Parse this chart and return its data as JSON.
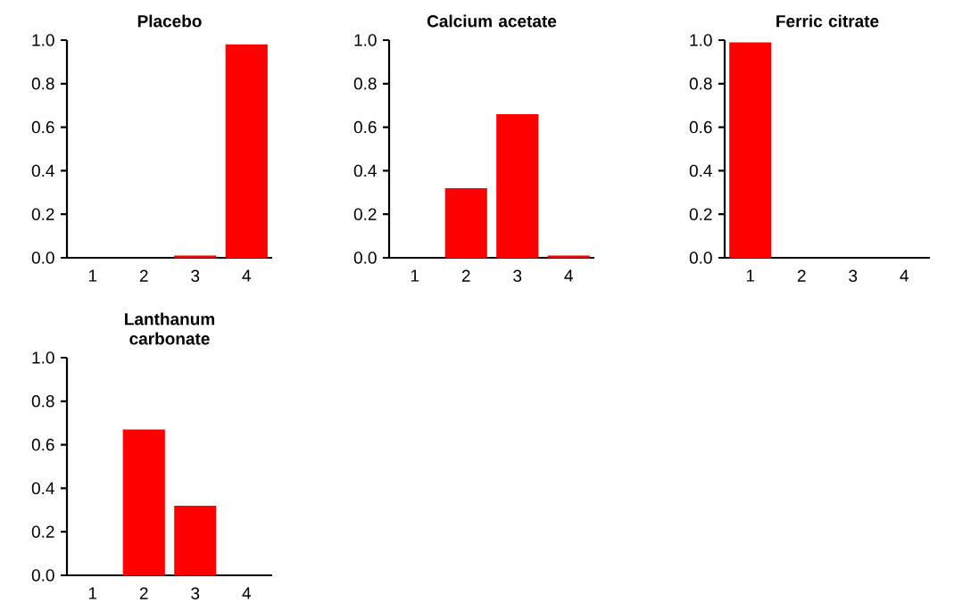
{
  "chart_data": [
    {
      "type": "bar",
      "title": "Placebo",
      "categories": [
        "1",
        "2",
        "3",
        "4"
      ],
      "values": [
        0,
        0,
        0.01,
        0.98
      ],
      "color": "#ff0000",
      "ylim": [
        0,
        1
      ],
      "yticks": [
        {
          "value": 0,
          "label": "0.0"
        },
        {
          "value": 0.2,
          "label": "0.2"
        },
        {
          "value": 0.4,
          "label": "0.4"
        },
        {
          "value": 0.6,
          "label": "0.6"
        },
        {
          "value": 0.8,
          "label": "0.8"
        },
        {
          "value": 1,
          "label": "1.0"
        }
      ]
    },
    {
      "type": "bar",
      "title": "Calcium acetate",
      "categories": [
        "1",
        "2",
        "3",
        "4"
      ],
      "values": [
        0,
        0.32,
        0.66,
        0.01
      ],
      "color": "#ff0000",
      "ylim": [
        0,
        1
      ],
      "yticks": [
        {
          "value": 0,
          "label": "0.0"
        },
        {
          "value": 0.2,
          "label": "0.2"
        },
        {
          "value": 0.4,
          "label": "0.4"
        },
        {
          "value": 0.6,
          "label": "0.6"
        },
        {
          "value": 0.8,
          "label": "0.8"
        },
        {
          "value": 1,
          "label": "1.0"
        }
      ]
    },
    {
      "type": "bar",
      "title": "Ferric citrate",
      "categories": [
        "1",
        "2",
        "3",
        "4"
      ],
      "values": [
        0.99,
        0,
        0,
        0
      ],
      "color": "#ff0000",
      "ylim": [
        0,
        1
      ],
      "yticks": [
        {
          "value": 0,
          "label": "0.0"
        },
        {
          "value": 0.2,
          "label": "0.2"
        },
        {
          "value": 0.4,
          "label": "0.4"
        },
        {
          "value": 0.6,
          "label": "0.6"
        },
        {
          "value": 0.8,
          "label": "0.8"
        },
        {
          "value": 1,
          "label": "1.0"
        }
      ]
    },
    {
      "type": "bar",
      "title": "Lanthanum carbonate",
      "categories": [
        "1",
        "2",
        "3",
        "4"
      ],
      "values": [
        0,
        0.67,
        0.32,
        0
      ],
      "color": "#ff0000",
      "ylim": [
        0,
        1
      ],
      "yticks": [
        {
          "value": 0,
          "label": "0.0"
        },
        {
          "value": 0.2,
          "label": "0.2"
        },
        {
          "value": 0.4,
          "label": "0.4"
        },
        {
          "value": 0.6,
          "label": "0.6"
        },
        {
          "value": 0.8,
          "label": "0.8"
        },
        {
          "value": 1,
          "label": "1.0"
        }
      ]
    }
  ]
}
